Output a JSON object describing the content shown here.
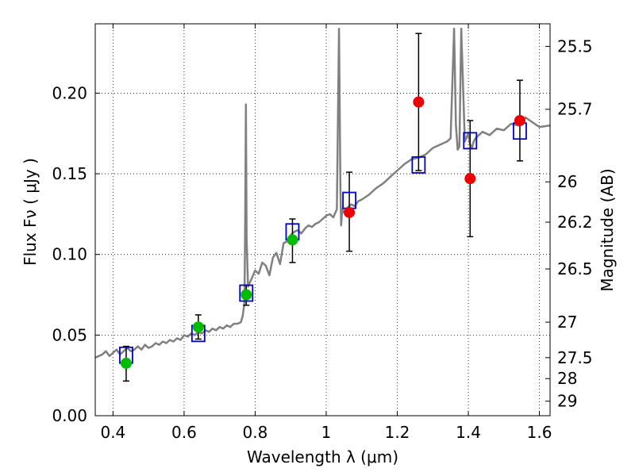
{
  "chart_data": {
    "type": "scatter",
    "xlabel": "Wavelength  λ (μm)",
    "ylabel_left": "Flux  Fν  ( μJy )",
    "ylabel_right": "Magnitude (AB)",
    "xlim": [
      0.35,
      1.63
    ],
    "ylim": [
      0.0,
      0.243
    ],
    "grid": true,
    "x_ticks": [
      {
        "value": 0.4,
        "label": "0.4"
      },
      {
        "value": 0.6,
        "label": "0.6"
      },
      {
        "value": 0.8,
        "label": "0.8"
      },
      {
        "value": 1.0,
        "label": "1"
      },
      {
        "value": 1.2,
        "label": "1.2"
      },
      {
        "value": 1.4,
        "label": "1.4"
      },
      {
        "value": 1.6,
        "label": "1.6"
      }
    ],
    "y_ticks": [
      {
        "value": 0.0,
        "label": "0.00"
      },
      {
        "value": 0.05,
        "label": "0.05"
      },
      {
        "value": 0.1,
        "label": "0.10"
      },
      {
        "value": 0.15,
        "label": "0.15"
      },
      {
        "value": 0.2,
        "label": "0.20"
      }
    ],
    "right_ticks": [
      {
        "flux": 0.229,
        "label": "25.5"
      },
      {
        "flux": 0.19,
        "label": "25.7"
      },
      {
        "flux": 0.145,
        "label": "26"
      },
      {
        "flux": 0.12,
        "label": "26.2"
      },
      {
        "flux": 0.091,
        "label": "26.5"
      },
      {
        "flux": 0.058,
        "label": "27"
      },
      {
        "flux": 0.036,
        "label": "27.5"
      },
      {
        "flux": 0.023,
        "label": "28"
      },
      {
        "flux": 0.009,
        "label": "29"
      }
    ],
    "model_spectrum": {
      "color": "#808080",
      "x": [
        0.35,
        0.36,
        0.37,
        0.38,
        0.39,
        0.4,
        0.41,
        0.42,
        0.43,
        0.44,
        0.45,
        0.46,
        0.47,
        0.48,
        0.49,
        0.5,
        0.51,
        0.52,
        0.53,
        0.54,
        0.55,
        0.56,
        0.57,
        0.58,
        0.59,
        0.6,
        0.61,
        0.62,
        0.63,
        0.64,
        0.65,
        0.66,
        0.67,
        0.68,
        0.69,
        0.7,
        0.71,
        0.72,
        0.73,
        0.74,
        0.75,
        0.76,
        0.765,
        0.77,
        0.772,
        0.774,
        0.776,
        0.78,
        0.79,
        0.8,
        0.81,
        0.82,
        0.83,
        0.84,
        0.85,
        0.86,
        0.87,
        0.88,
        0.89,
        0.9,
        0.91,
        0.92,
        0.93,
        0.94,
        0.95,
        0.96,
        0.97,
        0.98,
        0.99,
        1.0,
        1.01,
        1.02,
        1.03,
        1.036,
        1.04,
        1.042,
        1.044,
        1.046,
        1.05,
        1.06,
        1.07,
        1.08,
        1.09,
        1.1,
        1.12,
        1.14,
        1.16,
        1.18,
        1.2,
        1.22,
        1.24,
        1.26,
        1.28,
        1.3,
        1.32,
        1.34,
        1.35,
        1.36,
        1.365,
        1.37,
        1.375,
        1.38,
        1.39,
        1.4,
        1.405,
        1.41,
        1.415,
        1.42,
        1.44,
        1.46,
        1.48,
        1.5,
        1.52,
        1.54,
        1.56,
        1.58,
        1.6,
        1.63
      ],
      "y": [
        0.036,
        0.037,
        0.038,
        0.04,
        0.037,
        0.039,
        0.041,
        0.038,
        0.04,
        0.042,
        0.04,
        0.041,
        0.043,
        0.041,
        0.044,
        0.042,
        0.043,
        0.045,
        0.044,
        0.046,
        0.045,
        0.047,
        0.046,
        0.048,
        0.047,
        0.05,
        0.049,
        0.051,
        0.05,
        0.052,
        0.051,
        0.053,
        0.052,
        0.054,
        0.053,
        0.055,
        0.054,
        0.056,
        0.055,
        0.057,
        0.057,
        0.058,
        0.062,
        0.07,
        0.12,
        0.193,
        0.11,
        0.08,
        0.085,
        0.09,
        0.088,
        0.095,
        0.093,
        0.087,
        0.098,
        0.101,
        0.094,
        0.107,
        0.108,
        0.112,
        0.114,
        0.115,
        0.113,
        0.116,
        0.118,
        0.117,
        0.119,
        0.12,
        0.122,
        0.124,
        0.125,
        0.123,
        0.128,
        0.24,
        0.14,
        0.118,
        0.125,
        0.128,
        0.126,
        0.129,
        0.131,
        0.13,
        0.133,
        0.134,
        0.137,
        0.141,
        0.144,
        0.148,
        0.152,
        0.156,
        0.159,
        0.16,
        0.162,
        0.166,
        0.168,
        0.17,
        0.172,
        0.24,
        0.18,
        0.165,
        0.167,
        0.24,
        0.17,
        0.175,
        0.168,
        0.166,
        0.17,
        0.172,
        0.176,
        0.174,
        0.178,
        0.177,
        0.181,
        0.18,
        0.185,
        0.182,
        0.179,
        0.18
      ]
    },
    "points": [
      {
        "x": 0.437,
        "model": 0.0375,
        "obs": 0.0325,
        "err_low": 0.0215,
        "err_high": 0.043,
        "group": "green"
      },
      {
        "x": 0.64,
        "model": 0.051,
        "obs": 0.055,
        "err_low": 0.0475,
        "err_high": 0.0625,
        "group": "green"
      },
      {
        "x": 0.775,
        "model": 0.076,
        "obs": 0.075,
        "err_low": 0.0685,
        "err_high": 0.081,
        "group": "green"
      },
      {
        "x": 0.905,
        "model": 0.114,
        "obs": 0.109,
        "err_low": 0.095,
        "err_high": 0.122,
        "group": "green"
      },
      {
        "x": 1.065,
        "model": 0.1335,
        "obs": 0.126,
        "err_low": 0.102,
        "err_high": 0.151,
        "group": "red"
      },
      {
        "x": 1.26,
        "model": 0.1555,
        "obs": 0.1945,
        "err_low": 0.152,
        "err_high": 0.237,
        "group": "red"
      },
      {
        "x": 1.405,
        "model": 0.1705,
        "obs": 0.147,
        "err_low": 0.111,
        "err_high": 0.183,
        "group": "red"
      },
      {
        "x": 1.545,
        "model": 0.1765,
        "obs": 0.183,
        "err_low": 0.158,
        "err_high": 0.208,
        "group": "red"
      }
    ],
    "colors": {
      "green": "#00bb00",
      "red": "#ee0000",
      "model_box": "#0000cc",
      "errorbar": "#000000"
    }
  }
}
